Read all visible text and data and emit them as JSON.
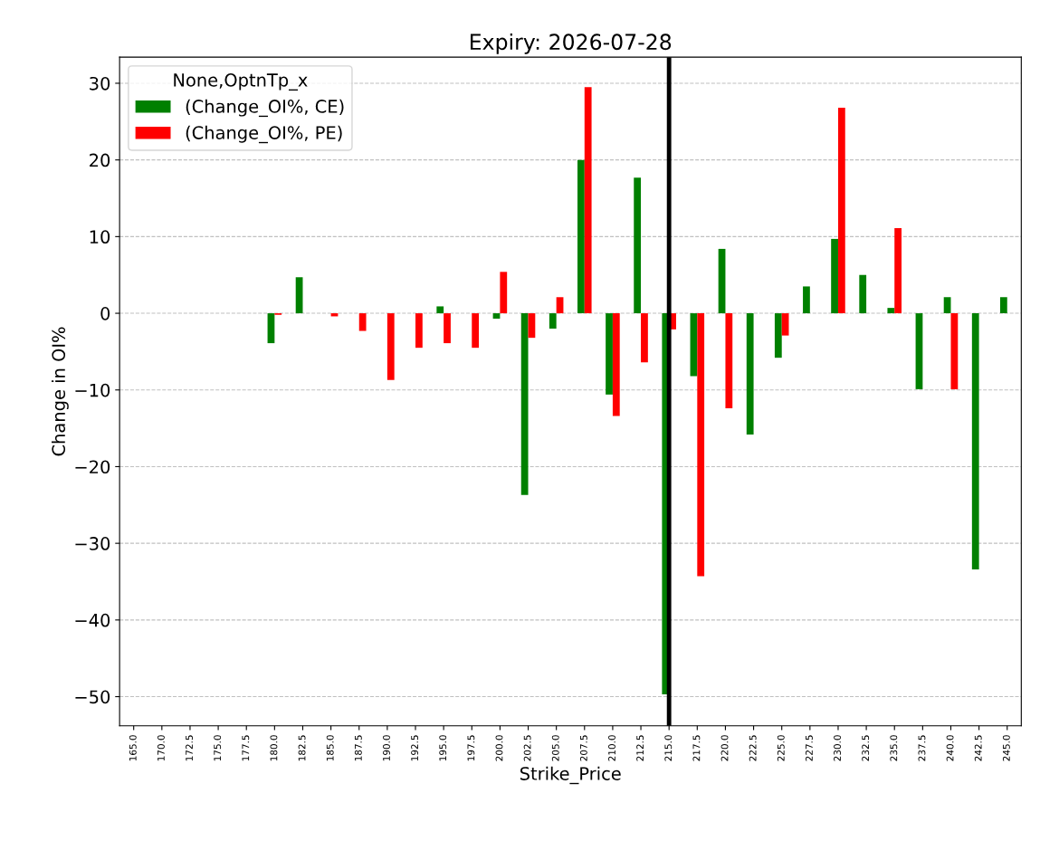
{
  "chart_data": {
    "type": "bar",
    "title": "Expiry: 2026-07-28",
    "xlabel": "Strike_Price",
    "ylabel": "Change in OI%",
    "legend_title": "None,OptnTp_x",
    "categories": [
      "165.0",
      "170.0",
      "172.5",
      "175.0",
      "177.5",
      "180.0",
      "182.5",
      "185.0",
      "187.5",
      "190.0",
      "192.5",
      "195.0",
      "197.5",
      "200.0",
      "202.5",
      "205.0",
      "207.5",
      "210.0",
      "212.5",
      "215.0",
      "217.5",
      "220.0",
      "222.5",
      "225.0",
      "227.5",
      "230.0",
      "232.5",
      "235.0",
      "237.5",
      "240.0",
      "242.5",
      "245.0"
    ],
    "series": [
      {
        "name": "(Change_OI%, CE)",
        "color": "#008000",
        "values": [
          null,
          null,
          null,
          null,
          null,
          -3.9,
          4.7,
          null,
          null,
          null,
          null,
          0.9,
          null,
          -0.7,
          -23.7,
          -2.0,
          20.0,
          -10.6,
          17.7,
          -49.7,
          -8.2,
          8.4,
          -15.8,
          -5.8,
          3.5,
          9.7,
          5.0,
          0.7,
          -9.9,
          2.1,
          -33.4,
          2.1
        ]
      },
      {
        "name": "(Change_OI%, PE)",
        "color": "#ff0000",
        "values": [
          null,
          null,
          null,
          null,
          null,
          -0.2,
          null,
          -0.4,
          -2.3,
          -8.7,
          -4.5,
          -3.9,
          -4.5,
          5.4,
          -3.2,
          2.1,
          29.5,
          -13.4,
          -6.4,
          -2.1,
          -34.3,
          -12.4,
          null,
          -2.9,
          null,
          26.8,
          null,
          11.1,
          null,
          -9.9,
          null,
          null
        ]
      }
    ],
    "ylim": [
      -53.8,
      33.4
    ],
    "yticks": [
      {
        "value": -50,
        "label": "−50"
      },
      {
        "value": -40,
        "label": "−40"
      },
      {
        "value": -30,
        "label": "−30"
      },
      {
        "value": -20,
        "label": "−20"
      },
      {
        "value": -10,
        "label": "−10"
      },
      0,
      10,
      20,
      30
    ],
    "ref_lines": [
      {
        "axis": "x",
        "value": "215.0",
        "color": "#000000"
      }
    ],
    "grid": "y",
    "legend": "top left"
  }
}
